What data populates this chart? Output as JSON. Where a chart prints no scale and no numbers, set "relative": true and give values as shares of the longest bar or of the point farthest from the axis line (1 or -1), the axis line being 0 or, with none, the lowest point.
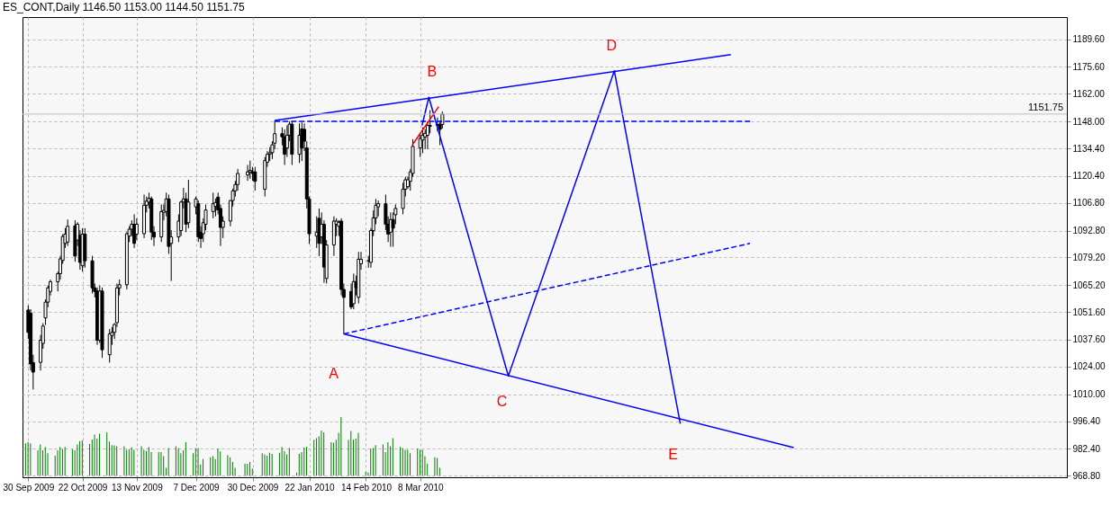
{
  "chart_data": [
    {
      "type": "candlestick",
      "title": "ES_CONT,Daily  1146.50 1153.00 1144.50 1151.75",
      "x": [
        "2009-09-30",
        "2009-10-01",
        "2009-10-02",
        "2009-10-05",
        "2009-10-06",
        "2009-10-07",
        "2009-10-08",
        "2009-10-09",
        "2009-10-12",
        "2009-10-13",
        "2009-10-14",
        "2009-10-15",
        "2009-10-16",
        "2009-10-19",
        "2009-10-20",
        "2009-10-21",
        "2009-10-22",
        "2009-10-23",
        "2009-10-26",
        "2009-10-27",
        "2009-10-28",
        "2009-10-29",
        "2009-10-30",
        "2009-11-02",
        "2009-11-03",
        "2009-11-04",
        "2009-11-05",
        "2009-11-06",
        "2009-11-09",
        "2009-11-10",
        "2009-11-11",
        "2009-11-12",
        "2009-11-13",
        "2009-11-16",
        "2009-11-17",
        "2009-11-18",
        "2009-11-19",
        "2009-11-20",
        "2009-11-23",
        "2009-11-24",
        "2009-11-25",
        "2009-11-26",
        "2009-11-27",
        "2009-11-30",
        "2009-12-01",
        "2009-12-02",
        "2009-12-03",
        "2009-12-04",
        "2009-12-07",
        "2009-12-08",
        "2009-12-09",
        "2009-12-10",
        "2009-12-11",
        "2009-12-14",
        "2009-12-15",
        "2009-12-16",
        "2009-12-17",
        "2009-12-18",
        "2009-12-21",
        "2009-12-22",
        "2009-12-23",
        "2009-12-24",
        "2009-12-28",
        "2009-12-29",
        "2009-12-30",
        "2009-12-31",
        "2010-01-04",
        "2010-01-05",
        "2010-01-06",
        "2010-01-07",
        "2010-01-08",
        "2010-01-11",
        "2010-01-12",
        "2010-01-13",
        "2010-01-14",
        "2010-01-15",
        "2010-01-18",
        "2010-01-19",
        "2010-01-20",
        "2010-01-21",
        "2010-01-22",
        "2010-01-25",
        "2010-01-26",
        "2010-01-27",
        "2010-01-28",
        "2010-01-29",
        "2010-02-01",
        "2010-02-02",
        "2010-02-03",
        "2010-02-04",
        "2010-02-05",
        "2010-02-08",
        "2010-02-09",
        "2010-02-10",
        "2010-02-11",
        "2010-02-12",
        "2010-02-15",
        "2010-02-16",
        "2010-02-17",
        "2010-02-18",
        "2010-02-19",
        "2010-02-22",
        "2010-02-23",
        "2010-02-24",
        "2010-02-25",
        "2010-02-26",
        "2010-03-01",
        "2010-03-02",
        "2010-03-03",
        "2010-03-04",
        "2010-03-05",
        "2010-03-08",
        "2010-03-09",
        "2010-03-10",
        "2010-03-11",
        "2010-03-12",
        "2010-03-15",
        "2010-03-16",
        "2010-03-17"
      ],
      "ohlc": [
        [
          1052.6,
          1055,
          1038,
          1041.3
        ],
        [
          1051,
          1053,
          1022,
          1025.3
        ],
        [
          1026,
          1030,
          1012.4,
          1021.2
        ],
        [
          1026.1,
          1040,
          1022,
          1037.3
        ],
        [
          1035.7,
          1046,
          1033,
          1044.5
        ],
        [
          1048.6,
          1058,
          1045,
          1056.6
        ],
        [
          1056.6,
          1065,
          1054,
          1063.8
        ],
        [
          1062,
          1068,
          1060,
          1066.9
        ],
        [
          1066.9,
          1072,
          1062,
          1071
        ],
        [
          1071,
          1080,
          1068,
          1078.5
        ],
        [
          1077.7,
          1091,
          1076,
          1089.8
        ],
        [
          1086.3,
          1094,
          1084,
          1091
        ],
        [
          1087,
          1098.4,
          1085,
          1095
        ],
        [
          1095.2,
          1098,
          1077,
          1079.9
        ],
        [
          1088,
          1097,
          1085,
          1096
        ],
        [
          1090.4,
          1093,
          1073,
          1076.7
        ],
        [
          1075,
          1094,
          1072,
          1091
        ],
        [
          1091,
          1094,
          1074,
          1077.5
        ],
        [
          1077.5,
          1080,
          1061,
          1063.8
        ],
        [
          1063.8,
          1066,
          1059,
          1062
        ],
        [
          1062.2,
          1064,
          1035,
          1037.3
        ],
        [
          1037.3,
          1065,
          1036,
          1062.2
        ],
        [
          1062.2,
          1064,
          1028.4,
          1032.5
        ],
        [
          1030,
          1043,
          1026,
          1040.5
        ],
        [
          1039.7,
          1044,
          1035,
          1041.3
        ],
        [
          1041.3,
          1046,
          1038,
          1045.3
        ],
        [
          1046.2,
          1066,
          1044,
          1063.8
        ],
        [
          1063.8,
          1068,
          1060,
          1065.4
        ],
        [
          1065.4,
          1092,
          1063,
          1091.2
        ],
        [
          1090,
          1095,
          1087,
          1093.5
        ],
        [
          1093.5,
          1098,
          1090,
          1096
        ],
        [
          1096,
          1101,
          1084,
          1086.3
        ],
        [
          1091,
          1099,
          1088,
          1096
        ],
        [
          1091.2,
          1111,
          1089,
          1105.6
        ],
        [
          1105.6,
          1110,
          1102,
          1107.7
        ],
        [
          1107.2,
          1112,
          1104,
          1109.2
        ],
        [
          1108.8,
          1110,
          1088,
          1092
        ],
        [
          1092,
          1095,
          1085,
          1089.5
        ],
        [
          1089.6,
          1106,
          1087,
          1102.4
        ],
        [
          1102,
          1106,
          1098,
          1103
        ],
        [
          1102.4,
          1112,
          1100,
          1108.8
        ],
        [
          1108.8,
          1111,
          1081,
          1084.8
        ],
        [
          1086.3,
          1093,
          1067.3,
          1089.6
        ],
        [
          1089.6,
          1101,
          1087,
          1097.6
        ],
        [
          1092.8,
          1108,
          1090,
          1107.2
        ],
        [
          1107.2,
          1114.4,
          1104,
          1108.8
        ],
        [
          1108.8,
          1112,
          1092,
          1096
        ],
        [
          1096.8,
          1118.5,
          1094,
          1107.2
        ],
        [
          1104.8,
          1110,
          1101,
          1108.8
        ],
        [
          1106.4,
          1108,
          1087,
          1089.6
        ],
        [
          1092,
          1095,
          1084,
          1088.8
        ],
        [
          1091.2,
          1099,
          1087,
          1096.8
        ],
        [
          1096,
          1106,
          1093,
          1103.2
        ],
        [
          1102.4,
          1112,
          1099,
          1106.4
        ],
        [
          1105,
          1109,
          1100,
          1107
        ],
        [
          1109.7,
          1112,
          1101,
          1103.2
        ],
        [
          1104,
          1106,
          1085,
          1094.4
        ],
        [
          1094.4,
          1100,
          1089,
          1097.6
        ],
        [
          1097.6,
          1108,
          1095,
          1108
        ],
        [
          1108,
          1114,
          1105,
          1112.9
        ],
        [
          1112.9,
          1118,
          1110,
          1116.1
        ],
        [
          1116.1,
          1124,
          1113,
          1121.7
        ],
        [
          1120.9,
          1126,
          1118,
          1122.5
        ],
        [
          1122.5,
          1128.2,
          1119,
          1123.3
        ],
        [
          1122.5,
          1125,
          1118,
          1121.7
        ],
        [
          1122.5,
          1125,
          1113,
          1117.7
        ],
        [
          1113.7,
          1130,
          1110,
          1128.2
        ],
        [
          1127.4,
          1133,
          1125,
          1131.4
        ],
        [
          1131.4,
          1135,
          1128,
          1132.2
        ],
        [
          1132.2,
          1138,
          1129,
          1136.2
        ],
        [
          1137,
          1148.5,
          1134,
          1141.8
        ],
        [
          1141.8,
          1145,
          1136,
          1140.2
        ],
        [
          1140.2,
          1144,
          1126,
          1131.4
        ],
        [
          1134.6,
          1146,
          1130,
          1141
        ],
        [
          1141,
          1148,
          1138,
          1146.6
        ],
        [
          1146.6,
          1148,
          1126,
          1131.4
        ],
        [
          1131.4,
          1147,
          1127,
          1141
        ],
        [
          1144.2,
          1147.5,
          1128,
          1134.6
        ],
        [
          1144,
          1147,
          1133,
          1138
        ],
        [
          1134.6,
          1138,
          1104,
          1108.8
        ],
        [
          1108.8,
          1110,
          1086,
          1091.2
        ],
        [
          1090,
          1100,
          1084,
          1092
        ],
        [
          1099,
          1104,
          1079.9,
          1086.3
        ],
        [
          1089.6,
          1102,
          1086,
          1096
        ],
        [
          1096,
          1098,
          1066.4,
          1074.3
        ],
        [
          1068.6,
          1088,
          1066,
          1085.5
        ],
        [
          1085.5,
          1100,
          1080,
          1097.6
        ],
        [
          1096,
          1099,
          1090,
          1097.6
        ],
        [
          1095,
          1098,
          1090,
          1097
        ],
        [
          1097.6,
          1099,
          1060,
          1063
        ],
        [
          1063,
          1066,
          1040.5,
          1059
        ],
        [
          1062,
          1066,
          1053,
          1054.2
        ],
        [
          1055.8,
          1071,
          1053,
          1067
        ],
        [
          1067,
          1070,
          1060,
          1063.8
        ],
        [
          1059,
          1082,
          1056,
          1078.3
        ],
        [
          1076,
          1082,
          1073,
          1078.3
        ],
        [
          1077.5,
          1080,
          1074,
          1077.5
        ],
        [
          1076.7,
          1094,
          1074,
          1092.8
        ],
        [
          1092.8,
          1103,
          1090,
          1099.2
        ],
        [
          1099.2,
          1108.8,
          1096,
          1105.6
        ],
        [
          1104.8,
          1108,
          1100,
          1106.4
        ],
        [
          1106.4,
          1111,
          1093,
          1096
        ],
        [
          1096,
          1100,
          1087,
          1091
        ],
        [
          1092,
          1102,
          1084.6,
          1098.4
        ],
        [
          1098.4,
          1102,
          1084.6,
          1094
        ],
        [
          1100.8,
          1106,
          1096,
          1104
        ],
        [
          1104,
          1117,
          1101,
          1113.7
        ],
        [
          1113.7,
          1120,
          1110,
          1118.5
        ],
        [
          1115,
          1120,
          1114,
          1118.5
        ],
        [
          1117.7,
          1124,
          1113,
          1122.5
        ],
        [
          1121.7,
          1139,
          1120,
          1135.4
        ],
        [
          1134.6,
          1142,
          1130,
          1139.4
        ],
        [
          1138.6,
          1145,
          1132,
          1141
        ],
        [
          1140.2,
          1144,
          1134,
          1142
        ],
        [
          1141,
          1148,
          1134,
          1146
        ],
        [
          1145.5,
          1153.7,
          1142,
          1146
        ],
        [
          1146,
          1150,
          1143,
          1146.5
        ],
        [
          1146.5,
          1148,
          1136,
          1144
        ],
        [
          1146.5,
          1153,
          1144.5,
          1151.75
        ]
      ],
      "series": [
        {
          "type": "line",
          "color": "#0000ff",
          "line_style": "solid",
          "x": [
            "2010-01-08",
            "2010-07-12"
          ],
          "values": [
            1148.5,
            1181.8
          ]
        },
        {
          "type": "line",
          "color": "#0000ff",
          "line_style": "solid",
          "x": [
            "2010-02-05",
            "2010-08-06T12:00"
          ],
          "values": [
            1040.5,
            983.0
          ]
        },
        {
          "type": "line",
          "color": "#0000ff",
          "line_style": "solid",
          "x": [
            "2010-03-08T18:00",
            "2010-03-11T12:00",
            "2010-04-12T18:00",
            "2010-05-25T18:00",
            "2010-06-21T12:00"
          ],
          "values": [
            1146,
            1160.2,
            1019.3,
            1173.6,
            995.1
          ]
        },
        {
          "type": "line",
          "color": "#0000ff",
          "line_style": "dashed",
          "x": [
            "2010-02-05",
            "2010-07-19T18:00"
          ],
          "values": [
            1040.5,
            1086.3
          ]
        },
        {
          "type": "line",
          "color": "#0000ff",
          "line_style": "dashed",
          "x": [
            "2010-01-08",
            "2010-07-20T12:00"
          ],
          "values": [
            1148.1,
            1148.1
          ]
        },
        {
          "type": "line",
          "color": "#ff0000",
          "line_style": "solid",
          "x": [
            "2010-03-04T18:00",
            "2010-03-15T12:00"
          ],
          "values": [
            1136,
            1155.5
          ]
        }
      ],
      "xlim": [
        "2009-09-29T12:00",
        "2010-11-23T12:00"
      ],
      "xticks": [
        {
          "value": "2009-09-30",
          "label": "30 Sep 2009"
        },
        {
          "value": "2009-10-22",
          "label": "22 Oct 2009"
        },
        {
          "value": "2009-11-13",
          "label": "13 Nov 2009"
        },
        {
          "value": "2009-12-07",
          "label": "7 Dec 2009"
        },
        {
          "value": "2009-12-30",
          "label": "30 Dec 2009"
        },
        {
          "value": "2010-01-22",
          "label": "22 Jan 2010"
        },
        {
          "value": "2010-02-14",
          "label": "14 Feb 2010"
        },
        {
          "value": "2010-03-08",
          "label": "8 Mar 2010"
        }
      ],
      "ylim": [
        968,
        1200.8
      ],
      "yticks": [
        {
          "value": 968.8,
          "label": "968.80"
        },
        {
          "value": 982.4,
          "label": "982.40"
        },
        {
          "value": 996.4,
          "label": "996.40"
        },
        {
          "value": 1010,
          "label": "1010.00"
        },
        {
          "value": 1024,
          "label": "1024.00"
        },
        {
          "value": 1037.6,
          "label": "1037.60"
        },
        {
          "value": 1051.6,
          "label": "1051.60"
        },
        {
          "value": 1065.2,
          "label": "1065.20"
        },
        {
          "value": 1079.2,
          "label": "1079.20"
        },
        {
          "value": 1092.8,
          "label": "1092.80"
        },
        {
          "value": 1106.8,
          "label": "1106.80"
        },
        {
          "value": 1120.4,
          "label": "1120.40"
        },
        {
          "value": 1134.4,
          "label": "1134.40"
        },
        {
          "value": 1148,
          "label": "1148.00"
        },
        {
          "value": 1162,
          "label": "1162.00"
        },
        {
          "value": 1175.6,
          "label": "1175.60"
        },
        {
          "value": 1189.6,
          "label": "1189.60"
        }
      ],
      "grid": true,
      "ref_lines": [
        {
          "axis": "y",
          "value": 1151.75,
          "label": "1151.75",
          "color": "#c0c0c0"
        }
      ],
      "annotations": [
        "A",
        "B",
        "C",
        "D",
        "E"
      ]
    },
    {
      "type": "bar",
      "relative": true,
      "color": "#008000",
      "tick_labels": false,
      "xlim": [
        "2009-09-29T12:00",
        "2010-11-23T12:00"
      ],
      "x": [
        "2009-09-30",
        "2009-10-01",
        "2009-10-02",
        "2009-10-05",
        "2009-10-06",
        "2009-10-07",
        "2009-10-08",
        "2009-10-09",
        "2009-10-12",
        "2009-10-13",
        "2009-10-14",
        "2009-10-15",
        "2009-10-16",
        "2009-10-19",
        "2009-10-20",
        "2009-10-21",
        "2009-10-22",
        "2009-10-23",
        "2009-10-26",
        "2009-10-27",
        "2009-10-28",
        "2009-10-29",
        "2009-10-30",
        "2009-11-02",
        "2009-11-03",
        "2009-11-04",
        "2009-11-05",
        "2009-11-06",
        "2009-11-09",
        "2009-11-10",
        "2009-11-11",
        "2009-11-12",
        "2009-11-13",
        "2009-11-16",
        "2009-11-17",
        "2009-11-18",
        "2009-11-19",
        "2009-11-20",
        "2009-11-23",
        "2009-11-24",
        "2009-11-25",
        "2009-11-26",
        "2009-11-27",
        "2009-11-30",
        "2009-12-01",
        "2009-12-02",
        "2009-12-03",
        "2009-12-04",
        "2009-12-07",
        "2009-12-08",
        "2009-12-09",
        "2009-12-10",
        "2009-12-11",
        "2009-12-14",
        "2009-12-15",
        "2009-12-16",
        "2009-12-17",
        "2009-12-18",
        "2009-12-21",
        "2009-12-22",
        "2009-12-23",
        "2009-12-24",
        "2009-12-28",
        "2009-12-29",
        "2009-12-30",
        "2009-12-31",
        "2010-01-04",
        "2010-01-05",
        "2010-01-06",
        "2010-01-07",
        "2010-01-08",
        "2010-01-11",
        "2010-01-12",
        "2010-01-13",
        "2010-01-14",
        "2010-01-15",
        "2010-01-18",
        "2010-01-19",
        "2010-01-20",
        "2010-01-21",
        "2010-01-22",
        "2010-01-25",
        "2010-01-26",
        "2010-01-27",
        "2010-01-28",
        "2010-01-29",
        "2010-02-01",
        "2010-02-02",
        "2010-02-03",
        "2010-02-04",
        "2010-02-05",
        "2010-02-08",
        "2010-02-09",
        "2010-02-10",
        "2010-02-11",
        "2010-02-12",
        "2010-02-15",
        "2010-02-16",
        "2010-02-17",
        "2010-02-18",
        "2010-02-19",
        "2010-02-22",
        "2010-02-23",
        "2010-02-24",
        "2010-02-25",
        "2010-02-26",
        "2010-03-01",
        "2010-03-02",
        "2010-03-03",
        "2010-03-04",
        "2010-03-05",
        "2010-03-08",
        "2010-03-09",
        "2010-03-10",
        "2010-03-11",
        "2010-03-12",
        "2010-03-15",
        "2010-03-16",
        "2010-03-17"
      ],
      "values": [
        0.55,
        0.575,
        0.55,
        0.43,
        0.53,
        0.43,
        0.49,
        0.38,
        0.34,
        0.43,
        0.49,
        0.45,
        0.49,
        0.45,
        0.43,
        0.53,
        0.59,
        0.6,
        0.54,
        0.615,
        0.7,
        0.63,
        0.715,
        0.74,
        0.58,
        0.52,
        0.515,
        0.5,
        0.5,
        0.44,
        0.45,
        0.48,
        0.44,
        0.5,
        0.44,
        0.42,
        0.49,
        0.4,
        0.4,
        0.4,
        0.33,
        0.13,
        0.47,
        0.5,
        0.47,
        0.38,
        0.43,
        0.57,
        0.38,
        0.47,
        0.47,
        0.19,
        0.28,
        0.31,
        0.33,
        0.28,
        0.46,
        0.41,
        0.35,
        0.31,
        0.23,
        0.13,
        0.2,
        0.2,
        0.23,
        0.12,
        0.38,
        0.36,
        0.34,
        0.39,
        0.37,
        0.39,
        0.49,
        0.42,
        0.36,
        0.47,
        0.05,
        0.37,
        0.4,
        0.48,
        0.49,
        0.61,
        0.64,
        0.67,
        0.77,
        0.74,
        0.57,
        0.56,
        0.61,
        0.73,
        1,
        0.61,
        0.76,
        0.61,
        0.63,
        0.73,
        0.06,
        0.05,
        0.46,
        0.47,
        0.52,
        0.53,
        0.4,
        0.57,
        0.5,
        0.64,
        0.49,
        0.47,
        0.44,
        0.44,
        0.38,
        0.46,
        0.44,
        0.44,
        0.33,
        0.2,
        0.31,
        0.3,
        0.13
      ]
    }
  ]
}
